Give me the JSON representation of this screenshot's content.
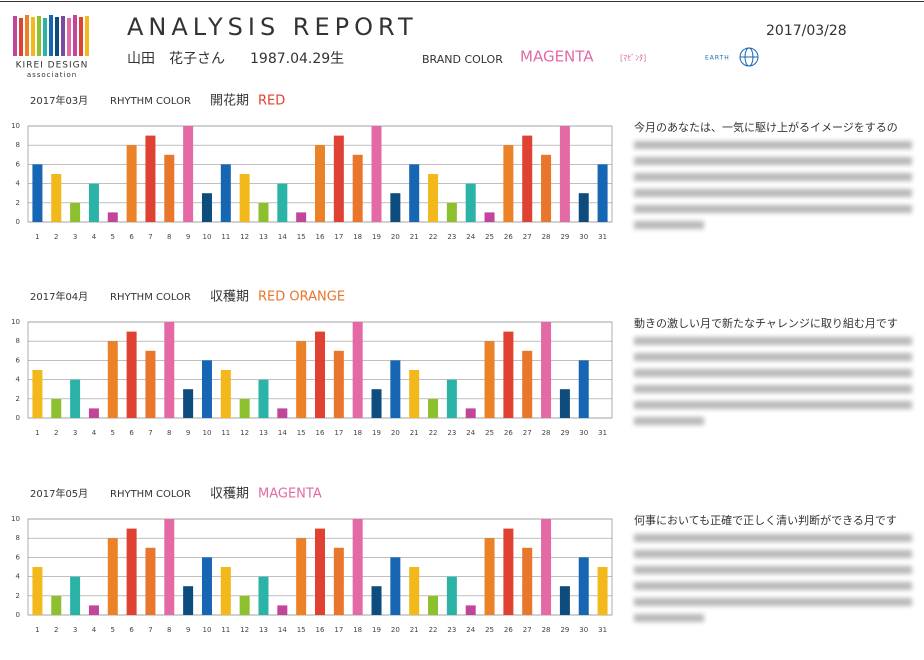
{
  "header": {
    "logo_main": "KIREI DESIGN",
    "logo_sub": "association",
    "title": "ANALYSIS REPORT",
    "name": "山田　花子さん",
    "birth": "1987.04.29生",
    "brand_label": "BRAND COLOR",
    "brand_color": "MAGENTA",
    "brand_kana": "[ﾏｾﾞﾝﾀ]",
    "earth": "EARTH",
    "date": "2017/03/28"
  },
  "chart_data": [
    {
      "type": "bar",
      "month": "2017年03月",
      "rhythm_label": "RHYTHM COLOR",
      "phase": "開花期",
      "color_name": "RED",
      "color_name_color": "#e0402f",
      "description": "今月のあなたは、一気に駆け上がるイメージをするの",
      "categories": [
        "1",
        "2",
        "3",
        "4",
        "5",
        "6",
        "7",
        "8",
        "9",
        "10",
        "11",
        "12",
        "13",
        "14",
        "15",
        "16",
        "17",
        "18",
        "19",
        "20",
        "21",
        "22",
        "23",
        "24",
        "25",
        "26",
        "27",
        "28",
        "29",
        "30",
        "31"
      ],
      "values": [
        6,
        5,
        2,
        4,
        1,
        8,
        9,
        7,
        10,
        3,
        6,
        5,
        2,
        4,
        1,
        8,
        9,
        7,
        10,
        3,
        6,
        5,
        2,
        4,
        1,
        8,
        9,
        7,
        10,
        3,
        6
      ],
      "colors": [
        "#1766b4",
        "#f2b81c",
        "#8dc02f",
        "#2bb3a8",
        "#c2449b",
        "#ec8227",
        "#df4233",
        "#e8762c",
        "#e36aa5",
        "#0e4c7d",
        "#1766b4",
        "#f2b81c",
        "#8dc02f",
        "#2bb3a8",
        "#c2449b",
        "#ec8227",
        "#df4233",
        "#e8762c",
        "#e36aa5",
        "#0e4c7d",
        "#1766b4",
        "#f2b81c",
        "#8dc02f",
        "#2bb3a8",
        "#c2449b",
        "#ec8227",
        "#df4233",
        "#e8762c",
        "#e36aa5",
        "#0e4c7d",
        "#1766b4"
      ],
      "ylim": [
        0,
        10
      ],
      "yticks": [
        0,
        2,
        4,
        6,
        8,
        10
      ],
      "grid": true
    },
    {
      "type": "bar",
      "month": "2017年04月",
      "rhythm_label": "RHYTHM COLOR",
      "phase": "収穫期",
      "color_name": "RED ORANGE",
      "color_name_color": "#e8762c",
      "description": "動きの激しい月で新たなチャレンジに取り組む月です",
      "categories": [
        "1",
        "2",
        "3",
        "4",
        "5",
        "6",
        "7",
        "8",
        "9",
        "10",
        "11",
        "12",
        "13",
        "14",
        "15",
        "16",
        "17",
        "18",
        "19",
        "20",
        "21",
        "22",
        "23",
        "24",
        "25",
        "26",
        "27",
        "28",
        "29",
        "30",
        "31"
      ],
      "values": [
        5,
        2,
        4,
        1,
        8,
        9,
        7,
        10,
        3,
        6,
        5,
        2,
        4,
        1,
        8,
        9,
        7,
        10,
        3,
        6,
        5,
        2,
        4,
        1,
        8,
        9,
        7,
        10,
        3,
        6,
        null
      ],
      "colors": [
        "#f2b81c",
        "#8dc02f",
        "#2bb3a8",
        "#c2449b",
        "#ec8227",
        "#df4233",
        "#e8762c",
        "#e36aa5",
        "#0e4c7d",
        "#1766b4",
        "#f2b81c",
        "#8dc02f",
        "#2bb3a8",
        "#c2449b",
        "#ec8227",
        "#df4233",
        "#e8762c",
        "#e36aa5",
        "#0e4c7d",
        "#1766b4",
        "#f2b81c",
        "#8dc02f",
        "#2bb3a8",
        "#c2449b",
        "#ec8227",
        "#df4233",
        "#e8762c",
        "#e36aa5",
        "#0e4c7d",
        "#1766b4",
        "#1766b4"
      ],
      "ylim": [
        0,
        10
      ],
      "yticks": [
        0,
        2,
        4,
        6,
        8,
        10
      ],
      "grid": true
    },
    {
      "type": "bar",
      "month": "2017年05月",
      "rhythm_label": "RHYTHM COLOR",
      "phase": "収穫期",
      "color_name": "MAGENTA",
      "color_name_color": "#e36aa5",
      "description": "何事においても正確で正しく清い判断ができる月です",
      "categories": [
        "1",
        "2",
        "3",
        "4",
        "5",
        "6",
        "7",
        "8",
        "9",
        "10",
        "11",
        "12",
        "13",
        "14",
        "15",
        "16",
        "17",
        "18",
        "19",
        "20",
        "21",
        "22",
        "23",
        "24",
        "25",
        "26",
        "27",
        "28",
        "29",
        "30",
        "31"
      ],
      "values": [
        5,
        2,
        4,
        1,
        8,
        9,
        7,
        10,
        3,
        6,
        5,
        2,
        4,
        1,
        8,
        9,
        7,
        10,
        3,
        6,
        5,
        2,
        4,
        1,
        8,
        9,
        7,
        10,
        3,
        6,
        5
      ],
      "colors": [
        "#f2b81c",
        "#8dc02f",
        "#2bb3a8",
        "#c2449b",
        "#ec8227",
        "#df4233",
        "#e8762c",
        "#e36aa5",
        "#0e4c7d",
        "#1766b4",
        "#f2b81c",
        "#8dc02f",
        "#2bb3a8",
        "#c2449b",
        "#ec8227",
        "#df4233",
        "#e8762c",
        "#e36aa5",
        "#0e4c7d",
        "#1766b4",
        "#f2b81c",
        "#8dc02f",
        "#2bb3a8",
        "#c2449b",
        "#ec8227",
        "#df4233",
        "#e8762c",
        "#e36aa5",
        "#0e4c7d",
        "#1766b4",
        "#f2b81c"
      ],
      "ylim": [
        0,
        10
      ],
      "yticks": [
        0,
        2,
        4,
        6,
        8,
        10
      ],
      "grid": true
    }
  ]
}
